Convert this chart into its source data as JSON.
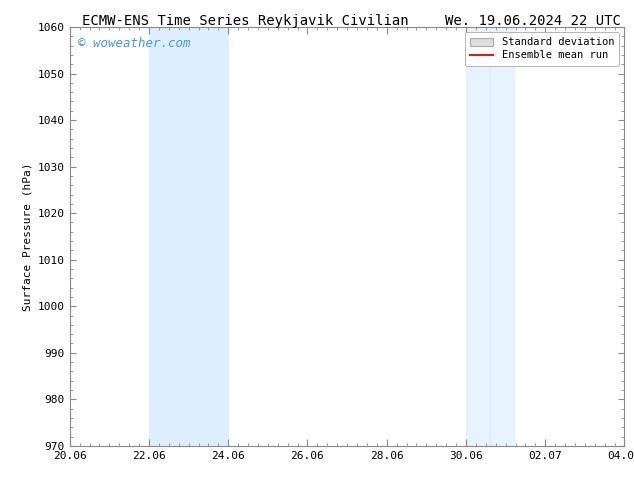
{
  "title_left": "ECMW-ENS Time Series Reykjavik Civilian",
  "title_right": "We. 19.06.2024 22 UTC",
  "ylabel": "Surface Pressure (hPa)",
  "ylim": [
    970,
    1060
  ],
  "yticks": [
    970,
    980,
    990,
    1000,
    1010,
    1020,
    1030,
    1040,
    1050,
    1060
  ],
  "xtick_labels": [
    "20.06",
    "22.06",
    "24.06",
    "26.06",
    "28.06",
    "30.06",
    "02.07",
    "04.07"
  ],
  "xtick_positions": [
    0,
    2,
    4,
    6,
    8,
    10,
    12,
    14
  ],
  "xlim": [
    0,
    14
  ],
  "shaded_bands": [
    {
      "x_start": 2.0,
      "x_end": 3.5,
      "color": "#ddeeff"
    },
    {
      "x_start": 3.5,
      "x_end": 4.0,
      "color": "#ddeeff"
    },
    {
      "x_start": 10.0,
      "x_end": 10.7,
      "color": "#ddeeff"
    },
    {
      "x_start": 10.7,
      "x_end": 11.1,
      "color": "#ddeeff"
    }
  ],
  "watermark_text": "© woweather.com",
  "watermark_color": "#4499dd",
  "legend_std_dev_color": "#dddddd",
  "legend_mean_run_color": "#dd2200",
  "background_color": "#ffffff",
  "spine_color": "#888888",
  "title_fontsize": 10,
  "axis_label_fontsize": 8,
  "tick_fontsize": 8,
  "watermark_fontsize": 9,
  "legend_fontsize": 7.5
}
